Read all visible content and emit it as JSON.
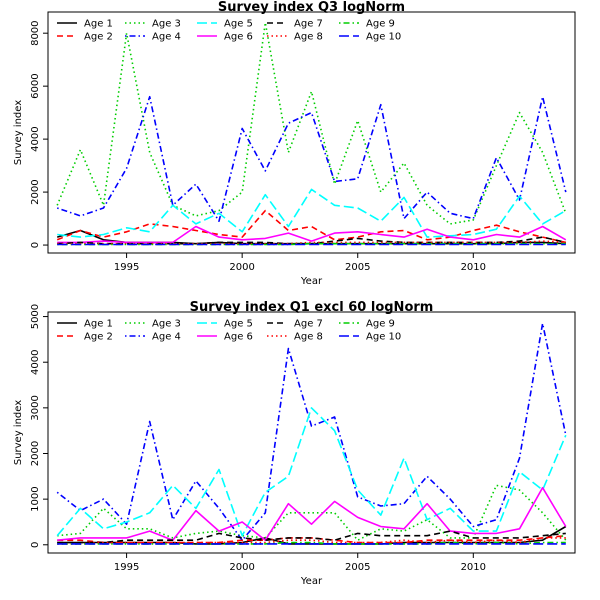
{
  "chart_data": [
    {
      "type": "line",
      "title": "Survey index Q3 logNorm",
      "xlabel": "Year",
      "ylabel": "Survey index",
      "xlim": [
        1991.6,
        2014.4
      ],
      "ylim": [
        -300,
        8800
      ],
      "x_ticks": [
        1995,
        2000,
        2005,
        2010
      ],
      "y_ticks": [
        0,
        2000,
        4000,
        6000,
        8000
      ],
      "legend_position": "top",
      "x": [
        1992,
        1993,
        1994,
        1995,
        1996,
        1997,
        1998,
        1999,
        2000,
        2001,
        2002,
        2003,
        2004,
        2005,
        2006,
        2007,
        2008,
        2009,
        2010,
        2011,
        2012,
        2013,
        2014
      ],
      "series": [
        {
          "name": "Age 1",
          "color": "#000000",
          "dash": "solid",
          "values": [
            300,
            550,
            200,
            100,
            100,
            100,
            50,
            100,
            50,
            50,
            50,
            50,
            50,
            50,
            50,
            50,
            50,
            50,
            50,
            50,
            100,
            100,
            50
          ]
        },
        {
          "name": "Age 2",
          "color": "#ff0000",
          "dash": "dashed",
          "values": [
            200,
            550,
            300,
            500,
            800,
            700,
            550,
            400,
            300,
            1300,
            550,
            700,
            200,
            300,
            500,
            550,
            200,
            300,
            550,
            750,
            500,
            300,
            100
          ]
        },
        {
          "name": "Age 3",
          "color": "#00cd00",
          "dash": "dotted",
          "values": [
            1500,
            3600,
            1500,
            8000,
            3500,
            1500,
            1100,
            1300,
            2000,
            8400,
            3500,
            5800,
            2300,
            4700,
            2000,
            3100,
            1500,
            800,
            950,
            3000,
            5000,
            3500,
            1200
          ]
        },
        {
          "name": "Age 4",
          "color": "#0000ff",
          "dash": "dotdash",
          "values": [
            1400,
            1100,
            1400,
            2900,
            5600,
            1500,
            2300,
            900,
            4400,
            2800,
            4600,
            5000,
            2400,
            2500,
            5300,
            1000,
            2000,
            1200,
            1000,
            3300,
            1700,
            5600,
            2000
          ]
        },
        {
          "name": "Age 5",
          "color": "#00ffff",
          "dash": "longdash",
          "values": [
            400,
            300,
            400,
            650,
            500,
            1500,
            800,
            1200,
            500,
            1900,
            700,
            2100,
            1500,
            1400,
            900,
            1800,
            300,
            350,
            400,
            600,
            1850,
            800,
            1300
          ]
        },
        {
          "name": "Age 6",
          "color": "#ff00ff",
          "dash": "solid",
          "values": [
            100,
            100,
            150,
            100,
            100,
            100,
            700,
            300,
            200,
            250,
            450,
            150,
            450,
            500,
            400,
            300,
            600,
            300,
            200,
            400,
            300,
            700,
            200
          ]
        },
        {
          "name": "Age 7",
          "color": "#000000",
          "dash": "dashed",
          "values": [
            50,
            100,
            50,
            50,
            50,
            50,
            50,
            100,
            100,
            100,
            50,
            50,
            150,
            250,
            150,
            100,
            100,
            100,
            100,
            100,
            150,
            300,
            100
          ]
        },
        {
          "name": "Age 8",
          "color": "#ff0000",
          "dash": "dotted",
          "values": [
            50,
            50,
            50,
            50,
            50,
            50,
            50,
            50,
            50,
            50,
            50,
            100,
            100,
            100,
            100,
            100,
            100,
            100,
            100,
            100,
            100,
            150,
            100
          ]
        },
        {
          "name": "Age 9",
          "color": "#00cd00",
          "dash": "dotdash",
          "values": [
            20,
            20,
            20,
            20,
            20,
            20,
            20,
            20,
            20,
            20,
            20,
            50,
            50,
            50,
            50,
            50,
            50,
            50,
            50,
            50,
            50,
            50,
            50
          ]
        },
        {
          "name": "Age 10",
          "color": "#0000ff",
          "dash": "longdash",
          "values": [
            20,
            20,
            20,
            20,
            20,
            20,
            20,
            20,
            20,
            20,
            20,
            20,
            20,
            20,
            20,
            20,
            20,
            20,
            20,
            20,
            20,
            20,
            20
          ]
        }
      ]
    },
    {
      "type": "line",
      "title": "Survey index Q1 excl 60 logNorm",
      "xlabel": "Year",
      "ylabel": "Survey index",
      "xlim": [
        1991.6,
        2014.4
      ],
      "ylim": [
        -180,
        5100
      ],
      "x_ticks": [
        1995,
        2000,
        2005,
        2010
      ],
      "y_ticks": [
        0,
        1000,
        2000,
        3000,
        4000,
        5000
      ],
      "legend_position": "top",
      "x": [
        1992,
        1993,
        1994,
        1995,
        1996,
        1997,
        1998,
        1999,
        2000,
        2001,
        2002,
        2003,
        2004,
        2005,
        2006,
        2007,
        2008,
        2009,
        2010,
        2011,
        2012,
        2013,
        2014
      ],
      "series": [
        {
          "name": "Age 1",
          "color": "#000000",
          "dash": "solid",
          "values": [
            50,
            50,
            50,
            50,
            50,
            50,
            20,
            20,
            50,
            150,
            20,
            20,
            20,
            20,
            20,
            50,
            50,
            50,
            50,
            50,
            50,
            100,
            400
          ]
        },
        {
          "name": "Age 2",
          "color": "#ff0000",
          "dash": "dashed",
          "values": [
            100,
            100,
            50,
            50,
            50,
            50,
            50,
            50,
            100,
            100,
            150,
            150,
            100,
            50,
            50,
            50,
            100,
            100,
            100,
            100,
            100,
            150,
            200
          ]
        },
        {
          "name": "Age 3",
          "color": "#00cd00",
          "dash": "dotted",
          "values": [
            200,
            250,
            800,
            350,
            350,
            150,
            250,
            300,
            200,
            150,
            700,
            700,
            700,
            100,
            350,
            300,
            550,
            150,
            150,
            1300,
            1200,
            700,
            100
          ]
        },
        {
          "name": "Age 4",
          "color": "#0000ff",
          "dash": "dotdash",
          "values": [
            1150,
            750,
            1000,
            450,
            2700,
            550,
            1400,
            800,
            100,
            700,
            4300,
            2600,
            2800,
            1050,
            850,
            900,
            1500,
            1000,
            400,
            550,
            1900,
            4850,
            2400
          ]
        },
        {
          "name": "Age 5",
          "color": "#00ffff",
          "dash": "longdash",
          "values": [
            200,
            800,
            350,
            500,
            700,
            1300,
            800,
            1650,
            200,
            1150,
            1500,
            3000,
            2500,
            1200,
            650,
            1900,
            550,
            800,
            300,
            300,
            1600,
            1200,
            2400
          ]
        },
        {
          "name": "Age 6",
          "color": "#ff00ff",
          "dash": "solid",
          "values": [
            100,
            150,
            150,
            150,
            300,
            100,
            750,
            300,
            500,
            100,
            900,
            450,
            950,
            600,
            400,
            350,
            900,
            300,
            250,
            250,
            350,
            1250,
            400
          ]
        },
        {
          "name": "Age 7",
          "color": "#000000",
          "dash": "dashed",
          "values": [
            50,
            50,
            50,
            100,
            100,
            100,
            100,
            250,
            150,
            100,
            150,
            150,
            100,
            250,
            200,
            200,
            200,
            300,
            150,
            150,
            150,
            200,
            250
          ]
        },
        {
          "name": "Age 8",
          "color": "#ff0000",
          "dash": "dotted",
          "values": [
            20,
            20,
            50,
            50,
            50,
            50,
            50,
            50,
            50,
            50,
            100,
            100,
            50,
            50,
            50,
            100,
            50,
            100,
            50,
            100,
            50,
            150,
            150
          ]
        },
        {
          "name": "Age 9",
          "color": "#00cd00",
          "dash": "dotdash",
          "values": [
            20,
            20,
            20,
            20,
            20,
            20,
            20,
            20,
            20,
            20,
            50,
            50,
            20,
            20,
            20,
            20,
            20,
            50,
            20,
            50,
            20,
            50,
            50
          ]
        },
        {
          "name": "Age 10",
          "color": "#0000ff",
          "dash": "longdash",
          "values": [
            20,
            20,
            20,
            20,
            20,
            20,
            20,
            20,
            20,
            20,
            20,
            20,
            20,
            20,
            20,
            20,
            20,
            20,
            20,
            20,
            20,
            20,
            20
          ]
        }
      ]
    }
  ]
}
